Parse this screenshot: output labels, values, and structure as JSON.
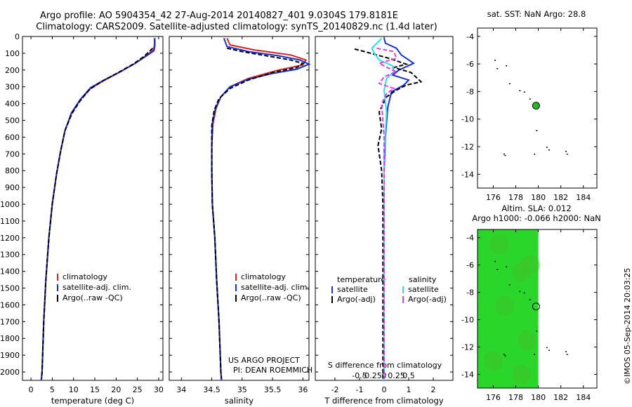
{
  "header": {
    "line1": "Argo profile: AO 5904354_42 27-Aug-2014 20140827_401 9.0304S 179.8181E",
    "line2": "Climatology: CARS2009. Satellite-adjusted climatology: synTS_20140829.nc (1.4d later)"
  },
  "footer": {
    "project": "US ARGO PROJECT",
    "pi": "PI: DEAN ROEMMICH",
    "timestamp": "©IMOS 05-Sep-2014 20:03:25"
  },
  "colors": {
    "climatology": "#e02020",
    "satellite": "#1530d8",
    "argo": "#000000",
    "sal_satellite": "#30e0f0",
    "sal_argo": "#e040e0",
    "sla_field": "#2ad62a",
    "float_marker": "#22bb22"
  },
  "chart_data": [
    {
      "type": "line",
      "id": "temperature",
      "xlabel": "temperature (deg C)",
      "xlim": [
        -2,
        31
      ],
      "ylim": [
        2050,
        0
      ],
      "xticks": [
        0,
        5,
        10,
        15,
        20,
        25,
        30
      ],
      "yticks": [
        0,
        100,
        200,
        300,
        400,
        500,
        600,
        700,
        800,
        900,
        1000,
        1100,
        1200,
        1300,
        1400,
        1500,
        1600,
        1700,
        1800,
        1900,
        2000
      ],
      "legend": [
        "climatology",
        "satellite-adj. clim.",
        "Argo(..raw -QC)"
      ],
      "series": [
        {
          "name": "climatology",
          "color": "#e02020",
          "points": [
            [
              29,
              10
            ],
            [
              29,
              50
            ],
            [
              28.8,
              80
            ],
            [
              27,
              115
            ],
            [
              24.5,
              160
            ],
            [
              21,
              210
            ],
            [
              17,
              265
            ],
            [
              14,
              310
            ],
            [
              11.5,
              380
            ],
            [
              9.5,
              460
            ],
            [
              8,
              560
            ],
            [
              7,
              680
            ],
            [
              6,
              820
            ],
            [
              5,
              1000
            ],
            [
              4.2,
              1200
            ],
            [
              3.5,
              1450
            ],
            [
              3,
              1700
            ],
            [
              2.6,
              2000
            ],
            [
              2.4,
              2050
            ]
          ]
        },
        {
          "name": "satellite-adj. clim.",
          "color": "#1530d8",
          "points": [
            [
              29.1,
              10
            ],
            [
              29.1,
              55
            ],
            [
              28.9,
              85
            ],
            [
              27,
              118
            ],
            [
              24.5,
              160
            ],
            [
              21,
              210
            ],
            [
              17,
              262
            ],
            [
              14,
              305
            ],
            [
              11.6,
              375
            ],
            [
              9.5,
              455
            ],
            [
              8,
              560
            ],
            [
              7,
              680
            ],
            [
              6,
              820
            ],
            [
              5,
              1000
            ],
            [
              4.2,
              1200
            ],
            [
              3.5,
              1450
            ],
            [
              3,
              1700
            ],
            [
              2.6,
              2000
            ],
            [
              2.4,
              2050
            ]
          ]
        },
        {
          "name": "Argo(..raw -QC)",
          "color": "#000000",
          "dashed": true,
          "points": [
            [
              28.6,
              70
            ],
            [
              28.2,
              80
            ],
            [
              26.5,
              120
            ],
            [
              24,
              165
            ],
            [
              20.5,
              215
            ],
            [
              16.5,
              270
            ],
            [
              13.8,
              315
            ],
            [
              11.5,
              385
            ],
            [
              9.6,
              460
            ],
            [
              8,
              560
            ],
            [
              7,
              680
            ],
            [
              6,
              820
            ],
            [
              5,
              1000
            ],
            [
              4.2,
              1200
            ],
            [
              3.5,
              1450
            ],
            [
              3,
              1700
            ],
            [
              2.6,
              2000
            ],
            [
              2.5,
              2040
            ]
          ]
        }
      ]
    },
    {
      "type": "line",
      "id": "salinity",
      "xlabel": "salinity",
      "xlim": [
        33.8,
        36.1
      ],
      "ylim": [
        2050,
        0
      ],
      "xticks": [
        34,
        34.5,
        35,
        35.5,
        36
      ],
      "legend": [
        "climatology",
        "satellite-adj. clim.",
        "Argo(..raw -QC)"
      ],
      "series": [
        {
          "name": "climatology",
          "color": "#e02020",
          "points": [
            [
              34.75,
              10
            ],
            [
              34.8,
              50
            ],
            [
              35.2,
              80
            ],
            [
              35.8,
              110
            ],
            [
              36.05,
              140
            ],
            [
              36.0,
              170
            ],
            [
              35.6,
              200
            ],
            [
              35.1,
              250
            ],
            [
              34.8,
              300
            ],
            [
              34.65,
              360
            ],
            [
              34.57,
              430
            ],
            [
              34.52,
              520
            ],
            [
              34.5,
              650
            ],
            [
              34.5,
              800
            ],
            [
              34.51,
              1000
            ],
            [
              34.55,
              1200
            ],
            [
              34.58,
              1450
            ],
            [
              34.62,
              1700
            ],
            [
              34.65,
              2000
            ],
            [
              34.66,
              2050
            ]
          ]
        },
        {
          "name": "satellite-adj. clim.",
          "color": "#1530d8",
          "points": [
            [
              34.7,
              10
            ],
            [
              34.75,
              60
            ],
            [
              35.1,
              90
            ],
            [
              35.6,
              115
            ],
            [
              35.95,
              140
            ],
            [
              36.1,
              165
            ],
            [
              35.9,
              195
            ],
            [
              35.5,
              220
            ],
            [
              35.1,
              255
            ],
            [
              34.8,
              300
            ],
            [
              34.65,
              360
            ],
            [
              34.56,
              430
            ],
            [
              34.51,
              520
            ],
            [
              34.5,
              650
            ],
            [
              34.5,
              800
            ],
            [
              34.51,
              1000
            ],
            [
              34.55,
              1200
            ],
            [
              34.58,
              1450
            ],
            [
              34.62,
              1700
            ],
            [
              34.65,
              2000
            ],
            [
              34.66,
              2050
            ]
          ]
        },
        {
          "name": "Argo(..raw -QC)",
          "color": "#000000",
          "dashed": true,
          "points": [
            [
              34.75,
              70
            ],
            [
              35.0,
              90
            ],
            [
              35.4,
              115
            ],
            [
              35.8,
              140
            ],
            [
              36.0,
              160
            ],
            [
              35.9,
              185
            ],
            [
              35.5,
              215
            ],
            [
              35.1,
              260
            ],
            [
              34.8,
              310
            ],
            [
              34.62,
              370
            ],
            [
              34.54,
              440
            ],
            [
              34.5,
              530
            ],
            [
              34.5,
              660
            ],
            [
              34.5,
              800
            ],
            [
              34.51,
              1000
            ],
            [
              34.55,
              1200
            ],
            [
              34.58,
              1450
            ],
            [
              34.62,
              1700
            ],
            [
              34.65,
              2000
            ],
            [
              34.66,
              2040
            ]
          ]
        }
      ]
    },
    {
      "type": "line",
      "id": "difference",
      "xlabel": "T difference from climatology",
      "xlabel_top": "S difference from climatology",
      "xlim": [
        -2.8,
        2.8
      ],
      "ylim": [
        2050,
        0
      ],
      "xticks": [
        -2,
        -1,
        0,
        1,
        2
      ],
      "xticks_top": [
        "-0.5",
        "-0.25",
        "0",
        "0.25",
        "0.5"
      ],
      "legend_titles": [
        "temperature",
        "salinity"
      ],
      "legend": [
        "satellite",
        "Argo(-adj)",
        "satellite",
        "Argo(-adj)"
      ],
      "series": [
        {
          "name": "temperature satellite",
          "color": "#1530d8",
          "points": [
            [
              0,
              10
            ],
            [
              0.05,
              40
            ],
            [
              0.5,
              70
            ],
            [
              0.7,
              110
            ],
            [
              1.2,
              160
            ],
            [
              0.6,
              200
            ],
            [
              0.35,
              230
            ],
            [
              1.0,
              260
            ],
            [
              0.8,
              290
            ],
            [
              0.3,
              330
            ],
            [
              0.15,
              420
            ],
            [
              0.05,
              600
            ],
            [
              0,
              800
            ],
            [
              0,
              1000
            ],
            [
              0,
              1500
            ],
            [
              0,
              2050
            ]
          ]
        },
        {
          "name": "temperature Argo(-adj)",
          "color": "#000000",
          "dashed": true,
          "points": [
            [
              -1.2,
              75
            ],
            [
              -0.8,
              90
            ],
            [
              -0.3,
              110
            ],
            [
              0.2,
              130
            ],
            [
              0.9,
              165
            ],
            [
              0.4,
              185
            ],
            [
              1.1,
              215
            ],
            [
              1.5,
              270
            ],
            [
              0.9,
              290
            ],
            [
              0.5,
              320
            ],
            [
              0.1,
              360
            ],
            [
              -0.2,
              450
            ],
            [
              -0.1,
              550
            ],
            [
              -0.25,
              650
            ],
            [
              -0.1,
              800
            ],
            [
              -0.05,
              1000
            ],
            [
              -0.05,
              1500
            ],
            [
              -0.05,
              2040
            ]
          ]
        },
        {
          "name": "salinity satellite",
          "color": "#30e0f0",
          "points": [
            [
              -0.1,
              10
            ],
            [
              -0.5,
              70
            ],
            [
              -0.4,
              100
            ],
            [
              -0.2,
              140
            ],
            [
              0.35,
              175
            ],
            [
              0.4,
              210
            ],
            [
              0.1,
              250
            ],
            [
              0,
              320
            ],
            [
              0.1,
              450
            ],
            [
              0,
              700
            ],
            [
              0,
              1000
            ],
            [
              0,
              1500
            ],
            [
              0,
              2050
            ]
          ]
        },
        {
          "name": "salinity Argo(-adj)",
          "color": "#e040e0",
          "dashed": true,
          "points": [
            [
              -0.3,
              70
            ],
            [
              0.4,
              90
            ],
            [
              0.5,
              130
            ],
            [
              -0.2,
              160
            ],
            [
              0.2,
              190
            ],
            [
              0.5,
              210
            ],
            [
              0.0,
              240
            ],
            [
              -0.2,
              280
            ],
            [
              0.4,
              310
            ],
            [
              0.1,
              340
            ],
            [
              -0.1,
              400
            ],
            [
              0.0,
              600
            ],
            [
              0,
              1000
            ],
            [
              0,
              2040
            ]
          ]
        }
      ]
    },
    {
      "type": "map",
      "id": "sst_map",
      "title": "sat. SST: NaN Argo: 28.8",
      "xlim": [
        174.6,
        185.2
      ],
      "ylim": [
        -15,
        -3.4
      ],
      "xticks": [
        176,
        178,
        180,
        182,
        184
      ],
      "yticks": [
        -4,
        -6,
        -8,
        -10,
        -12,
        -14
      ],
      "float_position": [
        179.8,
        -9.03
      ],
      "islands": [
        [
          176.1,
          -5.7
        ],
        [
          176.3,
          -6.3
        ],
        [
          177.1,
          -6.1
        ],
        [
          177.4,
          -7.4
        ],
        [
          178.3,
          -7.9
        ],
        [
          178.7,
          -8.0
        ],
        [
          179.2,
          -8.5
        ],
        [
          179.8,
          -10.8
        ],
        [
          176.9,
          -12.5
        ],
        [
          177.0,
          -12.6
        ],
        [
          179.6,
          -12.5
        ],
        [
          180.7,
          -12.0
        ],
        [
          180.9,
          -12.2
        ],
        [
          182.4,
          -12.3
        ],
        [
          182.5,
          -12.5
        ]
      ]
    },
    {
      "type": "map",
      "id": "sla_map",
      "title_line1": "Altim. SLA: 0.012",
      "title_line2": "Argo h1000: -0.066 h2000: NaN",
      "xlim": [
        174.6,
        185.2
      ],
      "ylim": [
        -15,
        -3.4
      ],
      "xticks": [
        176,
        178,
        180,
        182,
        184
      ],
      "yticks": [
        -4,
        -6,
        -8,
        -10,
        -12,
        -14
      ],
      "field_lon_max": 180,
      "float_position": [
        179.8,
        -9.03
      ],
      "islands": [
        [
          176.1,
          -5.7
        ],
        [
          176.3,
          -6.3
        ],
        [
          177.1,
          -6.1
        ],
        [
          177.4,
          -7.4
        ],
        [
          178.3,
          -7.9
        ],
        [
          178.7,
          -8.0
        ],
        [
          179.2,
          -8.5
        ],
        [
          179.8,
          -10.8
        ],
        [
          176.9,
          -12.5
        ],
        [
          177.0,
          -12.6
        ],
        [
          179.6,
          -12.5
        ],
        [
          180.7,
          -12.0
        ],
        [
          180.9,
          -12.2
        ],
        [
          182.4,
          -12.3
        ],
        [
          182.5,
          -12.5
        ]
      ]
    }
  ]
}
